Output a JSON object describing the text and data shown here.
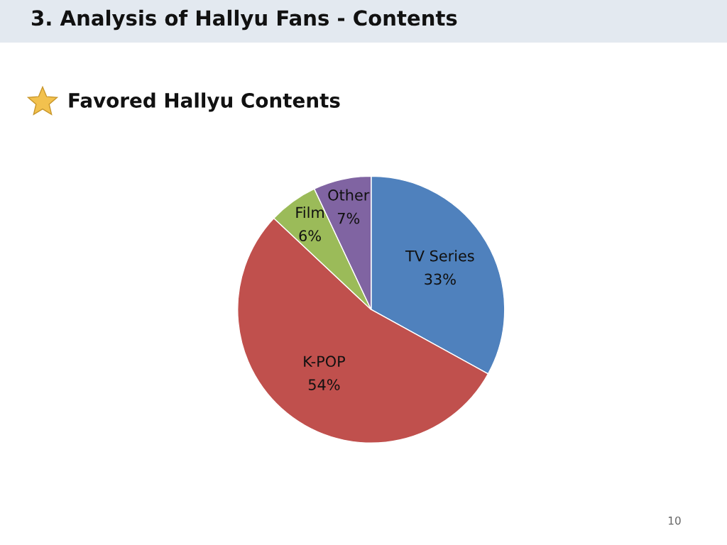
{
  "chart_data": {
    "type": "pie",
    "title": "3. Analysis of Hallyu Fans - Contents",
    "subtitle": "Favored Hallyu Contents",
    "categories": [
      "TV Series",
      "K-POP",
      "Film",
      "Other"
    ],
    "values": [
      33,
      54,
      6,
      7
    ],
    "value_labels": [
      "33%",
      "54%",
      "6%",
      "7%"
    ],
    "colors": [
      "#4f81bd",
      "#c0504d",
      "#9bbb59",
      "#8064a2"
    ],
    "legend": false,
    "annotations": [
      "10"
    ]
  }
}
